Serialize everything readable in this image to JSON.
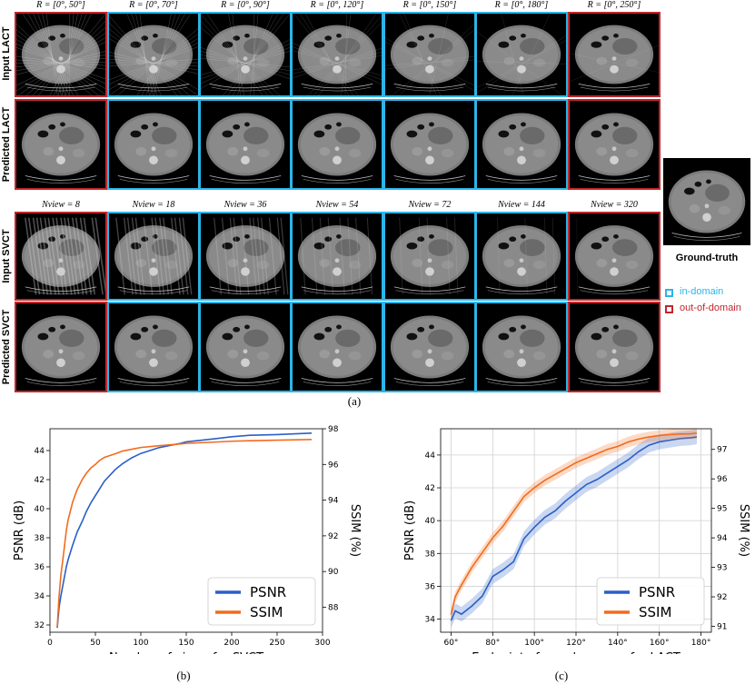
{
  "figure_a": {
    "lact_headers": [
      "R = [0°, 50°]",
      "R = [0°, 70°]",
      "R = [0°, 90°]",
      "R = [0°, 120°]",
      "R = [0°, 150°]",
      "R = [0°, 180°]",
      "R = [0°, 250°]"
    ],
    "svct_headers": [
      "Nview = 8",
      "Nview = 18",
      "Nview = 36",
      "Nview = 54",
      "Nview = 72",
      "Nview = 144",
      "Nview = 320"
    ],
    "row_labels": [
      "Input LACT",
      "Predicted LACT",
      "Input SVCT",
      "Predicted SVCT"
    ],
    "domain_flags": [
      "out",
      "in",
      "in",
      "in",
      "in",
      "in",
      "out"
    ],
    "ground_truth_label": "Ground-truth",
    "legend": {
      "in_domain": "in-domain",
      "out_of_domain": "out-of-domain"
    },
    "colors": {
      "in_domain": "#2bb5e8",
      "out_of_domain": "#c0272d"
    },
    "caption": "(a)"
  },
  "chart_data": [
    {
      "type": "line",
      "caption": "(b)",
      "xlabel": "Number of views for SVCT",
      "ylabel": "PSNR (dB)",
      "y2label": "SSIM (%)",
      "xlim": [
        0,
        300
      ],
      "ylim": [
        31.5,
        45.5
      ],
      "y2lim": [
        86.6,
        98
      ],
      "xticks": [
        0,
        50,
        100,
        150,
        200,
        250,
        300
      ],
      "yticks": [
        32,
        34,
        36,
        38,
        40,
        42,
        44
      ],
      "y2ticks": [
        88,
        90,
        92,
        94,
        96,
        98
      ],
      "legend_position": "lower-right",
      "grid": false,
      "x": [
        8,
        10,
        12,
        15,
        18,
        20,
        25,
        30,
        36,
        40,
        45,
        50,
        54,
        60,
        72,
        80,
        90,
        100,
        120,
        144,
        150,
        180,
        200,
        220,
        250,
        270,
        288
      ],
      "series": [
        {
          "name": "PSNR",
          "color": "#2a5fc8",
          "axis": "left",
          "values": [
            31.8,
            33.2,
            34.0,
            35.0,
            36.0,
            36.5,
            37.5,
            38.4,
            39.2,
            39.8,
            40.4,
            40.9,
            41.3,
            41.9,
            42.7,
            43.1,
            43.5,
            43.8,
            44.2,
            44.5,
            44.6,
            44.8,
            44.95,
            45.05,
            45.1,
            45.15,
            45.2
          ]
        },
        {
          "name": "SSIM",
          "color": "#f26b1d",
          "axis": "right",
          "values": [
            86.9,
            88.6,
            89.8,
            91.0,
            92.3,
            92.9,
            93.9,
            94.6,
            95.2,
            95.5,
            95.8,
            96.0,
            96.2,
            96.4,
            96.6,
            96.75,
            96.85,
            96.95,
            97.05,
            97.15,
            97.18,
            97.25,
            97.3,
            97.33,
            97.36,
            97.38,
            97.4
          ]
        }
      ]
    },
    {
      "type": "line",
      "caption": "(c)",
      "xlabel": "Endpoint of angular range for LACT",
      "ylabel": "PSNR (dB)",
      "y2label": "SSIM (%)",
      "xlim": [
        55,
        185
      ],
      "ylim": [
        33.2,
        45.6
      ],
      "y2lim": [
        90.8,
        97.7
      ],
      "xticks": [
        60,
        80,
        100,
        120,
        140,
        160,
        180
      ],
      "xtick_labels": [
        "60°",
        "80°",
        "100°",
        "120°",
        "140°",
        "160°",
        "180°"
      ],
      "yticks": [
        34,
        36,
        38,
        40,
        42,
        44
      ],
      "y2ticks": [
        91,
        92,
        93,
        94,
        95,
        96,
        97
      ],
      "legend_position": "lower-right",
      "grid": true,
      "x": [
        60,
        62,
        65,
        70,
        75,
        80,
        85,
        90,
        95,
        100,
        105,
        110,
        115,
        120,
        125,
        130,
        135,
        140,
        145,
        150,
        155,
        160,
        165,
        170,
        175,
        178
      ],
      "series": [
        {
          "name": "PSNR",
          "color": "#2a5fc8",
          "axis": "left",
          "values": [
            33.9,
            34.5,
            34.3,
            34.8,
            35.4,
            36.6,
            37.0,
            37.5,
            38.9,
            39.6,
            40.2,
            40.6,
            41.2,
            41.7,
            42.2,
            42.5,
            42.9,
            43.3,
            43.7,
            44.2,
            44.6,
            44.8,
            44.9,
            45.0,
            45.05,
            45.1
          ]
        },
        {
          "name": "SSIM",
          "color": "#f26b1d",
          "axis": "right",
          "values": [
            91.4,
            92.0,
            92.4,
            93.0,
            93.5,
            94.0,
            94.4,
            94.9,
            95.4,
            95.7,
            95.95,
            96.15,
            96.35,
            96.55,
            96.7,
            96.85,
            97.0,
            97.1,
            97.25,
            97.35,
            97.42,
            97.47,
            97.5,
            97.52,
            97.53,
            97.55
          ]
        }
      ]
    }
  ]
}
